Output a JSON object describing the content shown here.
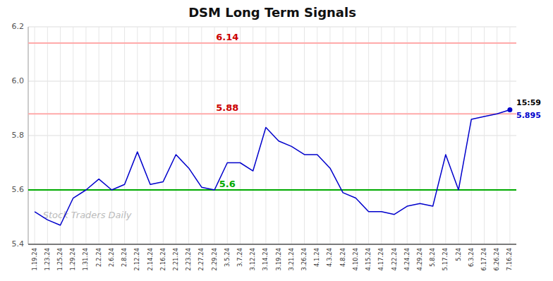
{
  "chart_data": {
    "type": "line",
    "title": "DSM Long Term Signals",
    "categories": [
      "1.19.24",
      "1.23.24",
      "1.25.24",
      "1.29.24",
      "1.31.24",
      "2.2.24",
      "2.6.24",
      "2.8.24",
      "2.12.24",
      "2.14.24",
      "2.16.24",
      "2.21.24",
      "2.23.24",
      "2.27.24",
      "2.29.24",
      "3.5.24",
      "3.7.24",
      "3.12.24",
      "3.14.24",
      "3.19.24",
      "3.21.24",
      "3.26.24",
      "4.1.24",
      "4.3.24",
      "4.8.24",
      "4.10.24",
      "4.15.24",
      "4.17.24",
      "4.22.24",
      "4.24.24",
      "4.29.24",
      "5.8.24",
      "5.17.24",
      "5.24",
      "6.3.24",
      "6.17.24",
      "6.26.24",
      "7.16.24"
    ],
    "values": [
      5.52,
      5.49,
      5.47,
      5.57,
      5.6,
      5.64,
      5.6,
      5.62,
      5.74,
      5.62,
      5.63,
      5.73,
      5.68,
      5.61,
      5.6,
      5.7,
      5.7,
      5.67,
      5.83,
      5.78,
      5.76,
      5.73,
      5.73,
      5.68,
      5.59,
      5.57,
      5.52,
      5.52,
      5.51,
      5.54,
      5.55,
      5.54,
      5.73,
      5.6,
      5.86,
      5.87,
      5.88,
      5.895
    ],
    "color": "#0000cc",
    "ylim": [
      5.4,
      6.2
    ],
    "yticks": [
      5.4,
      5.6,
      5.8,
      {
        "value": 6.0,
        "label": "6.0"
      },
      6.2
    ],
    "grid": true,
    "reference_lines": [
      {
        "value": 6.14,
        "label": "6.14",
        "color": "#ffaaaa",
        "label_color": "#cc0000"
      },
      {
        "value": 5.88,
        "label": "5.88",
        "color": "#ffaaaa",
        "label_color": "#cc0000"
      },
      {
        "value": 5.6,
        "label": "5.6",
        "color": "#00aa00",
        "label_color": "#00aa00"
      }
    ],
    "annotations": [
      {
        "text": "15:59",
        "color": "#000000"
      },
      {
        "text": "5.895",
        "color": "#0000cc"
      }
    ],
    "watermark": "Stock Traders Daily"
  }
}
